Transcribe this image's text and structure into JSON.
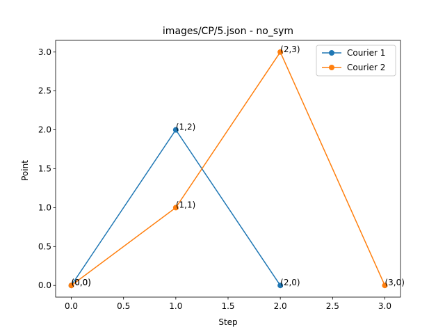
{
  "chart_data": {
    "type": "line",
    "title": "images/CP/5.json - no_sym",
    "xlabel": "Step",
    "ylabel": "Point",
    "xlim": [
      -0.15,
      3.15
    ],
    "ylim": [
      -0.15,
      3.15
    ],
    "xticks": [
      0.0,
      0.5,
      1.0,
      1.5,
      2.0,
      2.5,
      3.0
    ],
    "xtick_labels": [
      "0.0",
      "0.5",
      "1.0",
      "1.5",
      "2.0",
      "2.5",
      "3.0"
    ],
    "yticks": [
      0.0,
      0.5,
      1.0,
      1.5,
      2.0,
      2.5,
      3.0
    ],
    "ytick_labels": [
      "0.0",
      "0.5",
      "1.0",
      "1.5",
      "2.0",
      "2.5",
      "3.0"
    ],
    "grid": false,
    "legend_position": "top-right",
    "series": [
      {
        "name": "Courier 1",
        "color": "#1f77b4",
        "x": [
          0,
          1,
          2
        ],
        "y": [
          0,
          2,
          0
        ],
        "labels": [
          "(0,0)",
          "(1,2)",
          "(2,0)"
        ]
      },
      {
        "name": "Courier 2",
        "color": "#ff7f0e",
        "x": [
          0,
          1,
          2,
          3
        ],
        "y": [
          0,
          1,
          3,
          0
        ],
        "labels": [
          "(0,0)",
          "(1,1)",
          "(2,3)",
          "(3,0)"
        ]
      }
    ]
  }
}
